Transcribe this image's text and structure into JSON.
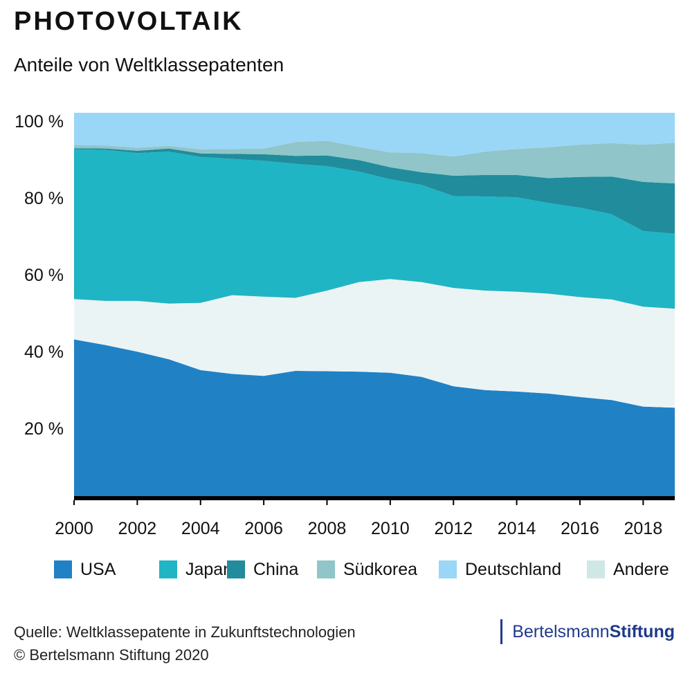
{
  "header": {
    "title": "PHOTOVOLTAIK",
    "subtitle": "Anteile von Weltklassepatenten"
  },
  "chart_data": {
    "type": "area",
    "stacked": true,
    "title": "PHOTOVOLTAIK",
    "subtitle": "Anteile von Weltklassepatenten",
    "x": [
      2000,
      2001,
      2002,
      2003,
      2004,
      2005,
      2006,
      2007,
      2008,
      2009,
      2010,
      2011,
      2012,
      2013,
      2014,
      2015,
      2016,
      2017,
      2018,
      2019
    ],
    "x_ticks": [
      2000,
      2002,
      2004,
      2006,
      2008,
      2010,
      2012,
      2014,
      2016,
      2018
    ],
    "x_tick_labels": [
      "2000",
      "2002",
      "2004",
      "2006",
      "2008",
      "2010",
      "2012",
      "2014",
      "2016",
      "2018"
    ],
    "y_ticks": [
      20,
      40,
      60,
      80,
      100
    ],
    "y_tick_labels": [
      "20 %",
      "40 %",
      "60 %",
      "80 %",
      "100 %"
    ],
    "ylim": [
      0,
      100
    ],
    "xlabel": "",
    "ylabel": "",
    "series": [
      {
        "name": "USA",
        "color": "#2181c5",
        "values": [
          41.0,
          39.5,
          37.8,
          35.8,
          33.0,
          32.0,
          31.5,
          32.8,
          32.7,
          32.6,
          32.3,
          31.2,
          28.8,
          27.8,
          27.4,
          26.9,
          26.0,
          25.2,
          23.5,
          23.2
        ]
      },
      {
        "name": "Andere",
        "color": "#ebf4f4",
        "values": [
          10.5,
          11.5,
          13.2,
          14.5,
          17.5,
          20.5,
          20.6,
          19.0,
          21.0,
          23.3,
          24.4,
          24.7,
          25.6,
          25.9,
          26.0,
          26.0,
          26.0,
          26.2,
          26.0,
          25.8
        ]
      },
      {
        "name": "Japan",
        "color": "#1fb5c4",
        "values": [
          39.0,
          39.3,
          38.5,
          39.6,
          38.0,
          35.5,
          35.4,
          34.9,
          32.4,
          28.8,
          26.0,
          25.3,
          23.9,
          24.5,
          24.6,
          23.6,
          23.3,
          22.2,
          19.7,
          19.5
        ]
      },
      {
        "name": "China",
        "color": "#208c9c",
        "values": [
          0.3,
          0.4,
          0.6,
          0.8,
          0.9,
          1.3,
          1.7,
          2.1,
          2.8,
          3.0,
          3.1,
          3.3,
          5.3,
          5.6,
          5.8,
          6.5,
          8.0,
          9.8,
          12.8,
          13.1
        ]
      },
      {
        "name": "Südkorea",
        "color": "#90c5c9",
        "values": [
          0.8,
          0.8,
          0.8,
          0.7,
          1.1,
          1.3,
          1.5,
          3.6,
          3.8,
          3.4,
          3.9,
          5.0,
          5.0,
          6.1,
          6.8,
          8.0,
          8.4,
          8.7,
          9.7,
          10.6
        ]
      },
      {
        "name": "Deutschland",
        "color": "#9ad6f6",
        "values": [
          8.4,
          8.5,
          9.1,
          8.6,
          9.5,
          9.4,
          9.3,
          7.6,
          7.3,
          8.9,
          10.3,
          10.5,
          11.4,
          10.1,
          9.4,
          9.0,
          8.3,
          7.9,
          8.3,
          7.8
        ]
      }
    ],
    "legend": {
      "placement": "bottom",
      "order": [
        "USA",
        "Japan",
        "China",
        "Südkorea",
        "Deutschland",
        "Andere"
      ],
      "colors": [
        "#2181c5",
        "#1fb5c4",
        "#208c9c",
        "#90c5c9",
        "#9ad6f6",
        "#cfe8e6"
      ]
    },
    "grid": false
  },
  "footer": {
    "source": "Quelle: Weltklassepatente in Zukunftstechnologien",
    "copyright": "© Bertelsmann Stiftung 2020",
    "logo_part1": "Bertelsmann",
    "logo_part2": "Stiftung",
    "logo_color": "#1f3b8a"
  }
}
